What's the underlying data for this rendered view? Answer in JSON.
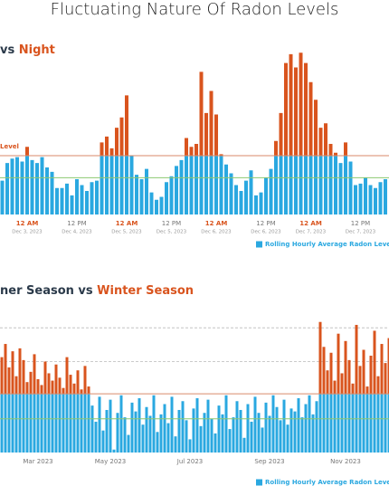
{
  "chart_data": [
    {
      "type": "bar",
      "title": "Fluctuating Nature Of Radon Levels",
      "subtitle_parts": [
        "vs ",
        "Night"
      ],
      "threshold_label": "Level",
      "legend": "Rolling Hourly Average Radon Level (pCi/L)",
      "ylim": [
        0,
        12
      ],
      "threshold": 4,
      "reference_line": 2.5,
      "colors": {
        "below": "#2aa8e0",
        "above": "#d9541e",
        "threshold": "#d98a6a",
        "reference": "#8cc870"
      },
      "categories": [
        null,
        null,
        null,
        null,
        null,
        "12 AM",
        null,
        null,
        null,
        null,
        null,
        null,
        null,
        null,
        null,
        "12 PM",
        null,
        null,
        null,
        null,
        null,
        null,
        null,
        null,
        null,
        "12 AM",
        null,
        null,
        null,
        null,
        null,
        null,
        null,
        null,
        "12 PM",
        null,
        null,
        null,
        null,
        null,
        null,
        null,
        null,
        "12 AM",
        null,
        null,
        null,
        null,
        null,
        null,
        null,
        null,
        null,
        "12 PM",
        null,
        null,
        null,
        null,
        null,
        null,
        null,
        null,
        "12 AM",
        null,
        null,
        null,
        null,
        null,
        null,
        null,
        null,
        null,
        "12 PM",
        null,
        null,
        null,
        null,
        null
      ],
      "category_dates": [
        null,
        null,
        null,
        null,
        null,
        "Dec 3, 2023",
        null,
        null,
        null,
        null,
        null,
        null,
        null,
        null,
        null,
        "Dec 4, 2023",
        null,
        null,
        null,
        null,
        null,
        null,
        null,
        null,
        null,
        "Dec 5, 2023",
        null,
        null,
        null,
        null,
        null,
        null,
        null,
        null,
        "Dec 5, 2023",
        null,
        null,
        null,
        null,
        null,
        null,
        null,
        null,
        "Dec 6, 2023",
        null,
        null,
        null,
        null,
        null,
        null,
        null,
        null,
        null,
        "Dec 6, 2023",
        null,
        null,
        null,
        null,
        null,
        null,
        null,
        null,
        "Dec 7, 2023",
        null,
        null,
        null,
        null,
        null,
        null,
        null,
        null,
        null,
        "Dec 7, 2023",
        null,
        null,
        null,
        null,
        null
      ],
      "values": [
        2.3,
        3.5,
        3.8,
        3.9,
        3.6,
        4.6,
        3.7,
        3.5,
        3.9,
        3.2,
        2.9,
        1.8,
        1.8,
        2.1,
        1.3,
        2.4,
        2.0,
        1.6,
        2.2,
        2.3,
        4.9,
        5.3,
        4.5,
        5.9,
        6.6,
        8.1,
        4.0,
        2.7,
        2.4,
        3.1,
        1.5,
        1.0,
        1.2,
        2.2,
        2.6,
        3.3,
        3.7,
        5.2,
        4.6,
        4.8,
        9.7,
        6.9,
        8.4,
        6.8,
        4.1,
        3.4,
        2.8,
        2.0,
        1.6,
        2.3,
        3.0,
        1.3,
        1.5,
        2.5,
        3.1,
        5.0,
        6.9,
        10.3,
        10.9,
        10.0,
        11.0,
        10.3,
        9.0,
        7.8,
        5.9,
        6.2,
        4.8,
        4.2,
        3.5,
        4.9,
        3.6,
        2.0,
        2.1,
        2.5,
        2.0,
        1.8,
        2.2,
        2.4
      ]
    },
    {
      "type": "bar",
      "subtitle_parts": [
        "ner Season vs ",
        "Winter Season"
      ],
      "legend": "Rolling Hourly Average Radon Level (pCi/L",
      "ylim": [
        0,
        9.5
      ],
      "threshold": 4,
      "reference_line": 2.3,
      "dashed_lines": [
        6.2,
        8.5
      ],
      "colors": {
        "below": "#2aa8e0",
        "above": "#d9541e",
        "threshold": "#d98a6a",
        "reference": "#8cc870"
      },
      "categories": [
        null,
        null,
        null,
        null,
        null,
        null,
        null,
        null,
        null,
        null,
        "Mar 2023",
        null,
        null,
        null,
        null,
        null,
        null,
        null,
        null,
        null,
        null,
        null,
        null,
        null,
        null,
        null,
        null,
        null,
        null,
        null,
        "May 2023",
        null,
        null,
        null,
        null,
        null,
        null,
        null,
        null,
        null,
        null,
        null,
        null,
        null,
        null,
        null,
        null,
        null,
        null,
        null,
        null,
        null,
        "Jul 2023",
        null,
        null,
        null,
        null,
        null,
        null,
        null,
        null,
        null,
        null,
        null,
        null,
        null,
        null,
        null,
        null,
        null,
        null,
        null,
        null,
        null,
        "Sep 2023",
        null,
        null,
        null,
        null,
        null,
        null,
        null,
        null,
        null,
        null,
        null,
        null,
        null,
        null,
        null,
        null,
        null,
        null,
        null,
        null,
        "Nov 2023",
        null,
        null,
        null,
        null,
        null,
        null,
        null,
        null,
        null,
        null,
        null,
        null
      ],
      "values": [
        6.5,
        7.4,
        5.8,
        6.9,
        5.2,
        7.1,
        6.3,
        4.8,
        5.5,
        6.7,
        5.0,
        4.6,
        6.2,
        5.4,
        4.9,
        6.0,
        5.1,
        4.4,
        6.5,
        5.3,
        4.7,
        5.6,
        4.3,
        5.9,
        4.5,
        3.2,
        2.1,
        3.8,
        1.5,
        2.9,
        3.6,
        0.2,
        2.7,
        3.9,
        2.4,
        1.2,
        3.4,
        2.8,
        3.7,
        1.9,
        3.1,
        2.5,
        3.9,
        1.4,
        2.6,
        3.3,
        2.0,
        3.8,
        1.1,
        2.9,
        3.5,
        2.2,
        0.9,
        3.0,
        3.7,
        1.8,
        2.7,
        3.6,
        2.3,
        1.3,
        3.2,
        2.6,
        3.9,
        1.6,
        2.4,
        3.5,
        2.9,
        1.0,
        3.3,
        2.1,
        3.8,
        2.7,
        1.7,
        3.4,
        2.5,
        3.9,
        3.1,
        2.2,
        3.6,
        1.9,
        3.0,
        2.8,
        3.7,
        2.4,
        3.3,
        3.9,
        2.6,
        3.5,
        8.9,
        7.2,
        5.6,
        6.8,
        4.9,
        8.1,
        5.4,
        7.6,
        6.3,
        4.7,
        8.7,
        5.9,
        7.0,
        4.5,
        6.6,
        8.3,
        5.2,
        7.4,
        6.1,
        7.8
      ]
    }
  ]
}
